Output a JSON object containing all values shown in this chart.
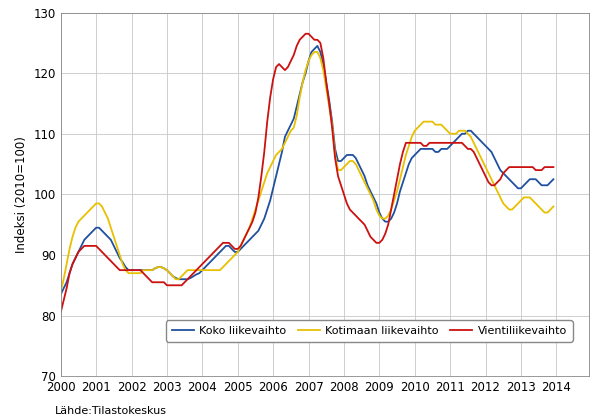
{
  "ylabel": "Indeksi (2010=100)",
  "source": "Lähde:Tilastokeskus",
  "ylim": [
    70,
    130
  ],
  "yticks": [
    70,
    80,
    90,
    100,
    110,
    120,
    130
  ],
  "xlim_start": 2000.0,
  "xlim_end": 2014.916,
  "line_colors": {
    "koko": "#2050a0",
    "kotimaan": "#e8c000",
    "vienti": "#cc1111"
  },
  "legend_labels": [
    "Koko liikevaihto",
    "Kotimaan liikevaihto",
    "Vientiliikevaihto"
  ],
  "koko": [
    83.5,
    84.5,
    85.5,
    87.0,
    88.5,
    89.5,
    90.5,
    91.5,
    92.5,
    93.0,
    93.5,
    94.0,
    94.5,
    94.5,
    94.0,
    93.5,
    93.0,
    92.5,
    91.5,
    90.5,
    89.5,
    88.8,
    88.0,
    87.5,
    87.5,
    87.5,
    87.5,
    87.5,
    87.5,
    87.5,
    87.5,
    87.5,
    87.8,
    88.0,
    88.0,
    87.8,
    87.5,
    87.0,
    86.5,
    86.2,
    86.0,
    86.0,
    86.0,
    86.0,
    86.2,
    86.5,
    86.8,
    87.0,
    87.5,
    88.0,
    88.5,
    89.0,
    89.5,
    90.0,
    90.5,
    91.0,
    91.5,
    91.5,
    91.0,
    90.5,
    90.5,
    91.0,
    91.5,
    92.0,
    92.5,
    93.0,
    93.5,
    94.0,
    95.0,
    96.0,
    97.5,
    99.0,
    101.0,
    103.0,
    105.0,
    107.0,
    109.5,
    110.5,
    111.5,
    112.5,
    114.5,
    116.5,
    118.5,
    120.0,
    122.0,
    123.5,
    124.0,
    124.5,
    123.5,
    121.5,
    118.5,
    115.5,
    112.0,
    107.5,
    105.5,
    105.5,
    106.0,
    106.5,
    106.5,
    106.5,
    106.0,
    105.0,
    104.0,
    103.0,
    101.5,
    100.5,
    99.5,
    98.5,
    97.0,
    96.0,
    95.5,
    95.5,
    96.0,
    97.0,
    98.5,
    100.5,
    102.0,
    103.5,
    105.0,
    106.0,
    106.5,
    107.0,
    107.5,
    107.5,
    107.5,
    107.5,
    107.5,
    107.0,
    107.0,
    107.5,
    107.5,
    107.5,
    108.0,
    108.5,
    109.0,
    109.5,
    110.0,
    110.0,
    110.5,
    110.5,
    110.0,
    109.5,
    109.0,
    108.5,
    108.0,
    107.5,
    107.0,
    106.0,
    105.0,
    104.0,
    103.5,
    103.0,
    102.5,
    102.0,
    101.5,
    101.0,
    101.0,
    101.5,
    102.0,
    102.5,
    102.5,
    102.5,
    102.0,
    101.5,
    101.5,
    101.5,
    102.0,
    102.5
  ],
  "kotimaan": [
    84.0,
    86.0,
    88.5,
    91.0,
    93.0,
    94.5,
    95.5,
    96.0,
    96.5,
    97.0,
    97.5,
    98.0,
    98.5,
    98.5,
    98.0,
    97.0,
    96.0,
    94.5,
    93.0,
    91.5,
    90.0,
    88.5,
    87.5,
    87.0,
    87.0,
    87.0,
    87.0,
    87.0,
    87.5,
    87.5,
    87.5,
    87.5,
    87.8,
    88.0,
    88.0,
    87.8,
    87.5,
    87.0,
    86.5,
    86.0,
    86.0,
    86.5,
    87.0,
    87.5,
    87.5,
    87.5,
    87.5,
    87.5,
    87.5,
    87.5,
    87.5,
    87.5,
    87.5,
    87.5,
    87.5,
    88.0,
    88.5,
    89.0,
    89.5,
    90.0,
    90.5,
    91.5,
    92.5,
    93.5,
    94.5,
    96.0,
    97.5,
    99.0,
    100.5,
    102.0,
    103.5,
    104.5,
    105.5,
    106.5,
    107.0,
    107.5,
    108.5,
    109.5,
    110.5,
    111.0,
    113.0,
    116.0,
    118.5,
    120.5,
    122.0,
    123.0,
    123.5,
    123.5,
    122.5,
    120.5,
    117.5,
    114.5,
    111.5,
    106.5,
    104.0,
    104.0,
    104.5,
    105.0,
    105.5,
    105.5,
    105.0,
    104.0,
    103.0,
    102.0,
    101.0,
    100.0,
    99.0,
    97.5,
    96.5,
    96.0,
    96.0,
    96.5,
    97.5,
    99.0,
    100.5,
    102.5,
    104.5,
    106.5,
    108.0,
    109.5,
    110.5,
    111.0,
    111.5,
    112.0,
    112.0,
    112.0,
    112.0,
    111.5,
    111.5,
    111.5,
    111.0,
    110.5,
    110.0,
    110.0,
    110.0,
    110.5,
    110.5,
    110.5,
    110.0,
    109.5,
    108.5,
    107.5,
    106.5,
    105.5,
    104.5,
    103.5,
    102.5,
    101.5,
    100.5,
    99.5,
    98.5,
    98.0,
    97.5,
    97.5,
    98.0,
    98.5,
    99.0,
    99.5,
    99.5,
    99.5,
    99.0,
    98.5,
    98.0,
    97.5,
    97.0,
    97.0,
    97.5,
    98.0
  ],
  "vienti": [
    80.5,
    82.5,
    84.5,
    87.0,
    88.5,
    89.5,
    90.5,
    91.0,
    91.5,
    91.5,
    91.5,
    91.5,
    91.5,
    91.0,
    90.5,
    90.0,
    89.5,
    89.0,
    88.5,
    88.0,
    87.5,
    87.5,
    87.5,
    87.5,
    87.5,
    87.5,
    87.5,
    87.5,
    87.0,
    86.5,
    86.0,
    85.5,
    85.5,
    85.5,
    85.5,
    85.5,
    85.0,
    85.0,
    85.0,
    85.0,
    85.0,
    85.0,
    85.5,
    86.0,
    86.5,
    87.0,
    87.5,
    88.0,
    88.5,
    89.0,
    89.5,
    90.0,
    90.5,
    91.0,
    91.5,
    92.0,
    92.0,
    92.0,
    91.5,
    91.0,
    91.0,
    91.5,
    92.5,
    93.5,
    94.5,
    95.5,
    97.0,
    99.5,
    103.0,
    107.0,
    112.0,
    116.0,
    119.0,
    121.0,
    121.5,
    121.0,
    120.5,
    121.0,
    122.0,
    123.0,
    124.5,
    125.5,
    126.0,
    126.5,
    126.5,
    126.0,
    125.5,
    125.5,
    125.0,
    122.5,
    118.5,
    115.0,
    111.0,
    106.0,
    103.0,
    101.5,
    100.0,
    98.5,
    97.5,
    97.0,
    96.5,
    96.0,
    95.5,
    95.0,
    94.0,
    93.0,
    92.5,
    92.0,
    92.0,
    92.5,
    93.5,
    95.0,
    97.5,
    100.0,
    102.5,
    105.0,
    107.0,
    108.5,
    108.5,
    108.5,
    108.5,
    108.5,
    108.5,
    108.0,
    108.0,
    108.5,
    108.5,
    108.5,
    108.5,
    108.5,
    108.5,
    108.5,
    108.5,
    108.5,
    108.5,
    108.5,
    108.5,
    108.0,
    107.5,
    107.5,
    107.0,
    106.0,
    105.0,
    104.0,
    103.0,
    102.0,
    101.5,
    101.5,
    102.0,
    102.5,
    103.5,
    104.0,
    104.5,
    104.5,
    104.5,
    104.5,
    104.5,
    104.5,
    104.5,
    104.5,
    104.5,
    104.0,
    104.0,
    104.0,
    104.5,
    104.5,
    104.5,
    104.5
  ]
}
